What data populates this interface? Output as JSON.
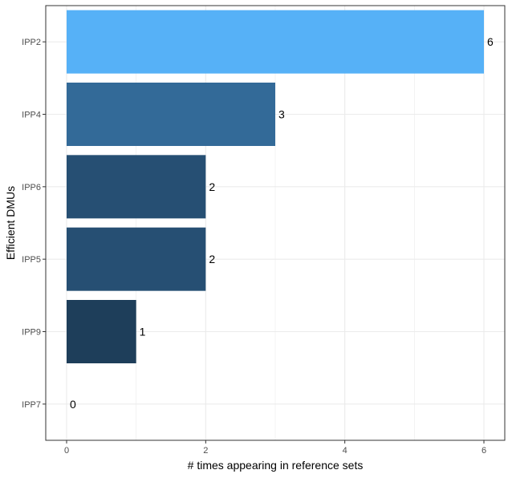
{
  "chart_data": {
    "type": "bar",
    "orientation": "horizontal",
    "categories": [
      "IPP2",
      "IPP4",
      "IPP6",
      "IPP5",
      "IPP9",
      "IPP7"
    ],
    "values": [
      6,
      3,
      2,
      2,
      1,
      0
    ],
    "bar_colors": [
      "#56b1f7",
      "#336a98",
      "#264f73",
      "#264f73",
      "#1e3e5a",
      "#132b43"
    ],
    "xlabel": "# times appearing in reference sets",
    "ylabel": "Efficient DMUs",
    "xlim": [
      -0.3,
      6.3
    ],
    "x_ticks": [
      0,
      2,
      4,
      6
    ],
    "x_tick_labels": [
      "0",
      "2",
      "4",
      "6"
    ],
    "grid": true,
    "panel_border_color": "#333333",
    "grid_color": "#ebebeb"
  }
}
